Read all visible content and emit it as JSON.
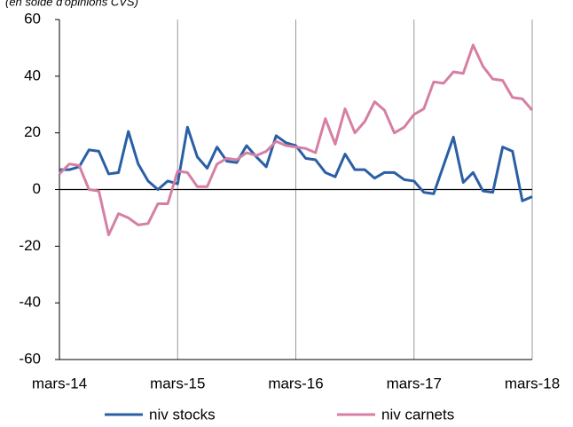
{
  "chart_data": {
    "type": "line",
    "subtitle": "(en solde d'opinions CVS)",
    "categories": [
      "mars-14",
      null,
      null,
      null,
      null,
      null,
      null,
      null,
      null,
      null,
      null,
      null,
      "mars-15",
      null,
      null,
      null,
      null,
      null,
      null,
      null,
      null,
      null,
      null,
      null,
      "mars-16",
      null,
      null,
      null,
      null,
      null,
      null,
      null,
      null,
      null,
      null,
      null,
      "mars-17",
      null,
      null,
      null,
      null,
      null,
      null,
      null,
      null,
      null,
      null,
      null,
      "mars-18"
    ],
    "series": [
      {
        "name": "niv stocks",
        "color": "#2a5fa5",
        "values": [
          7,
          7,
          8,
          14,
          13.5,
          5.5,
          6,
          20.5,
          9,
          3,
          0,
          3,
          2,
          22,
          11.5,
          7.5,
          15,
          10,
          9.5,
          15.5,
          11.5,
          8,
          19,
          16.5,
          15.5,
          11,
          10.5,
          6,
          4.5,
          12.5,
          7,
          7,
          4,
          6,
          6,
          3.5,
          3,
          -1,
          -1.5,
          8.5,
          18.5,
          2.5,
          6,
          -0.5,
          -1,
          15,
          13.5,
          -4,
          -2.5
        ]
      },
      {
        "name": "niv carnets",
        "color": "#d67fa4",
        "values": [
          5.5,
          9,
          8.5,
          0,
          -0.5,
          -16,
          -8.5,
          -10,
          -12.5,
          -12,
          -5,
          -5,
          6.5,
          6,
          1,
          1,
          9,
          11,
          10.5,
          13,
          12,
          13.5,
          17,
          15.5,
          15,
          14.5,
          13,
          25,
          16,
          28.5,
          20,
          24,
          31,
          28,
          20,
          22,
          26.5,
          28.5,
          38,
          37.5,
          41.5,
          41,
          51,
          43.5,
          39,
          38.5,
          32.5,
          32,
          28
        ]
      }
    ],
    "ylim": [
      -60,
      60
    ],
    "yticks": [
      -60,
      -40,
      -20,
      0,
      20,
      40,
      60
    ],
    "grid": true,
    "legend": "bottom"
  }
}
